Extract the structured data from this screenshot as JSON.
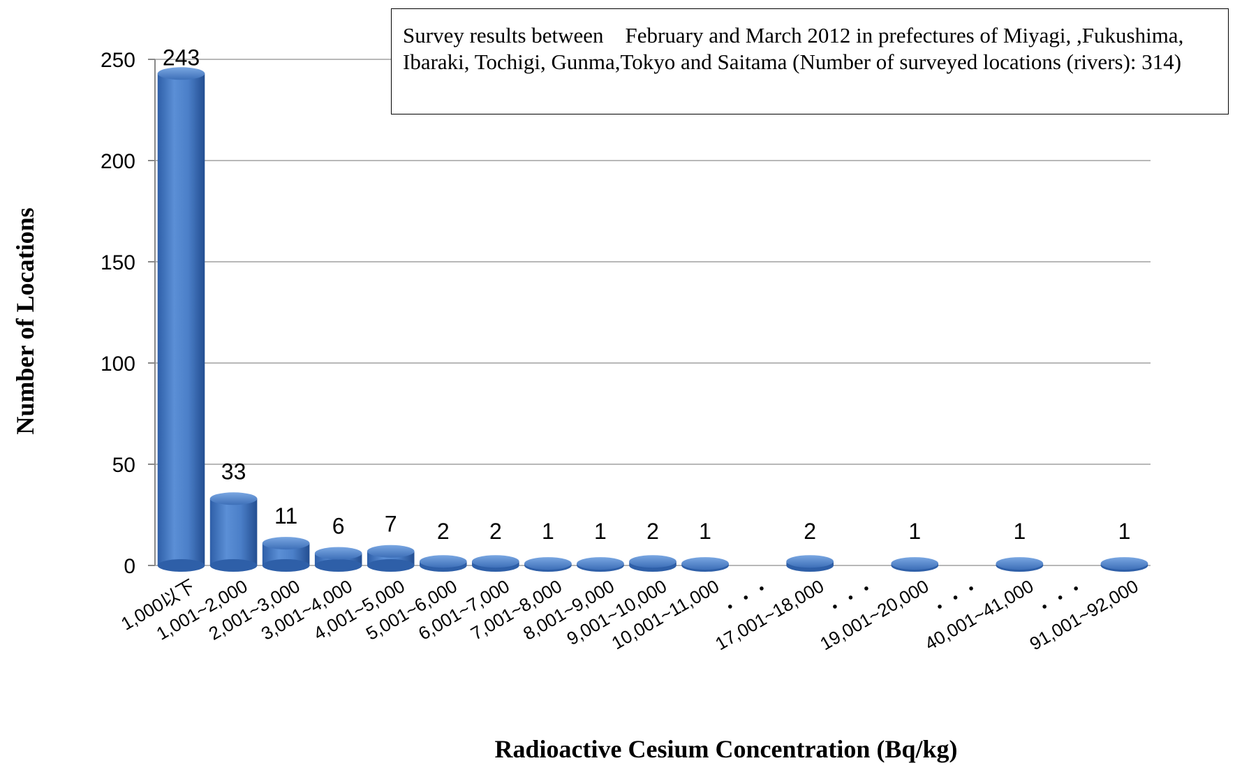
{
  "chart_data": {
    "type": "bar",
    "categories": [
      "1,000以下",
      "1,001~2,000",
      "2,001~3,000",
      "3,001~4,000",
      "4,001~5,000",
      "5,001~6,000",
      "6,001~7,000",
      "7,001~8,000",
      "8,001~9,000",
      "9,001~10,000",
      "10,001~11,000",
      "・・・",
      "17,001~18,000",
      "・・・",
      "19,001~20,000",
      "・・・",
      "40,001~41,000",
      "・・・",
      "91,001~92,000"
    ],
    "values": [
      243,
      33,
      11,
      6,
      7,
      2,
      2,
      1,
      1,
      2,
      1,
      null,
      2,
      null,
      1,
      null,
      1,
      null,
      1
    ],
    "data_labels": [
      "243",
      "33",
      "11",
      "6",
      "7",
      "2",
      "2",
      "1",
      "1",
      "2",
      "1",
      "",
      "2",
      "",
      "1",
      "",
      "1",
      "",
      "1"
    ],
    "ylim": [
      0,
      250
    ],
    "yticks": [
      0,
      50,
      100,
      150,
      200,
      250
    ],
    "xlabel": "Radioactive Cesium Concentration (Bq/kg)",
    "ylabel": "Number of Locations",
    "annotation": "Survey results between　February and March 2012 in prefectures of Miyagi, ,Fukushima, Ibaraki, Tochigi, Gunma,Tokyo and Saitama (Number of surveyed locations (rivers): 314)",
    "bar_color": "#4A7EC8",
    "grid": true,
    "legend": "none"
  }
}
